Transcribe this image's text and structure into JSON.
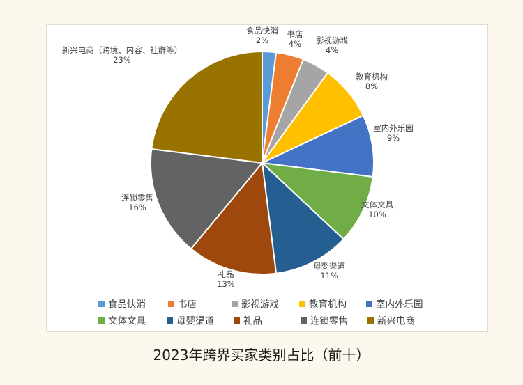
{
  "caption": "2023年跨界买家类别占比（前十）",
  "chart_data": {
    "type": "pie",
    "title": "",
    "slices": [
      {
        "label": "食品快消",
        "legend": "食品快消",
        "value": 2,
        "value_label": "2%",
        "color": "#5b9bd5"
      },
      {
        "label": "书店",
        "legend": "书店",
        "value": 4,
        "value_label": "4%",
        "color": "#ed7d31"
      },
      {
        "label": "影视游戏",
        "legend": "影视游戏",
        "value": 4,
        "value_label": "4%",
        "color": "#a5a5a5"
      },
      {
        "label": "教育机构",
        "legend": "教育机构",
        "value": 8,
        "value_label": "8%",
        "color": "#ffc000"
      },
      {
        "label": "室内外乐园",
        "legend": "室内外乐园",
        "value": 9,
        "value_label": "9%",
        "color": "#4472c4"
      },
      {
        "label": "文体文具",
        "legend": "文体文具",
        "value": 10,
        "value_label": "10%",
        "color": "#70ad47"
      },
      {
        "label": "母婴渠道",
        "legend": "母婴渠道",
        "value": 11,
        "value_label": "11%",
        "color": "#255e91"
      },
      {
        "label": "礼品",
        "legend": "礼品",
        "value": 13,
        "value_label": "13%",
        "color": "#9e480e"
      },
      {
        "label": "连锁零售",
        "legend": "连锁零售",
        "value": 16,
        "value_label": "16%",
        "color": "#636363"
      },
      {
        "label": "新兴电商（跨境、内容、社群等）",
        "legend": "新兴电商",
        "value": 23,
        "value_label": "23%",
        "color": "#997300"
      }
    ],
    "legend_position": "bottom"
  }
}
